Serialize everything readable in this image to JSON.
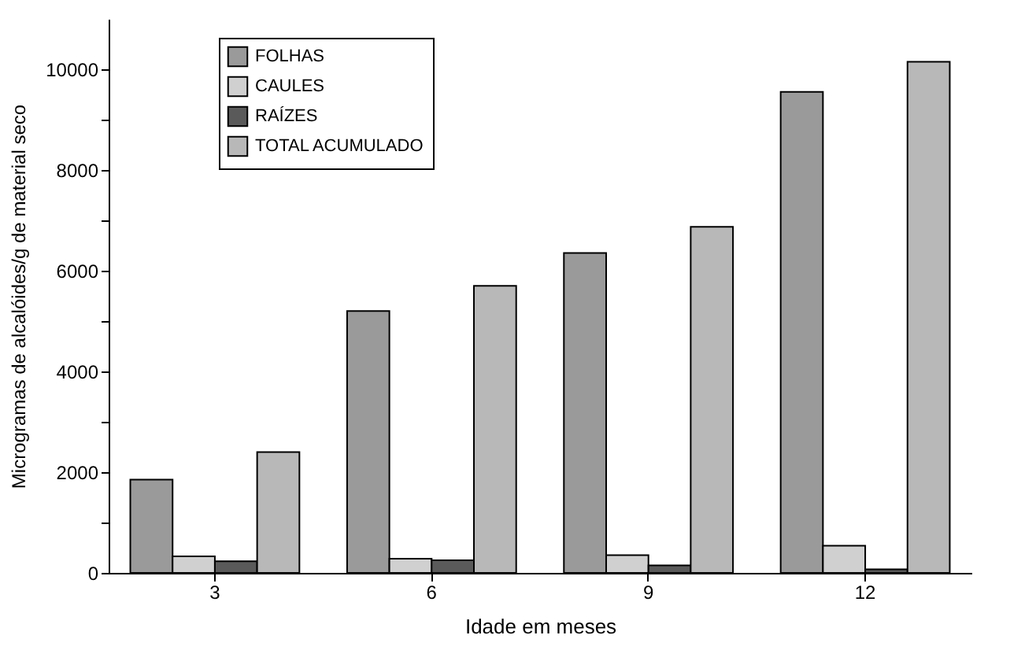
{
  "chart_data": {
    "type": "bar",
    "xlabel": "Idade em meses",
    "ylabel": "Microgramas de alcalóides/g de material seco",
    "categories": [
      "3",
      "6",
      "9",
      "12"
    ],
    "series": [
      {
        "name": "FOLHAS",
        "color": "#9a9a9a",
        "values": [
          1850,
          5200,
          6350,
          9550
        ]
      },
      {
        "name": "CAULES",
        "color": "#d0d0d0",
        "values": [
          330,
          280,
          350,
          540
        ]
      },
      {
        "name": "RAÍZES",
        "color": "#5a5a5a",
        "values": [
          230,
          250,
          150,
          70
        ]
      },
      {
        "name": "TOTAL ACUMULADO",
        "color": "#b8b8b8",
        "values": [
          2400,
          5700,
          6870,
          10150
        ]
      }
    ],
    "ylim": [
      0,
      11000
    ],
    "yticks": [
      0,
      {
        "value": 1000,
        "label": null
      },
      2000,
      {
        "value": 3000,
        "label": null
      },
      4000,
      {
        "value": 5000,
        "label": null
      },
      6000,
      {
        "value": 7000,
        "label": null
      },
      8000,
      {
        "value": 9000,
        "label": null
      },
      10000
    ],
    "legend": "top left",
    "grid": false
  }
}
